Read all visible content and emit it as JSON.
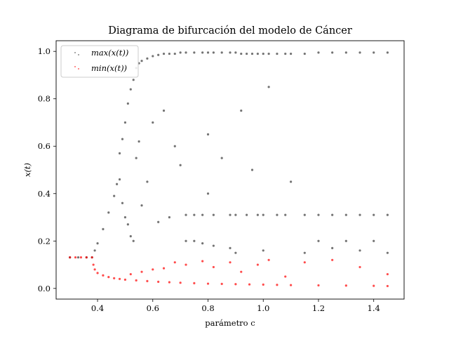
{
  "chart_data": {
    "type": "scatter",
    "title": "Diagrama de bifurcación del modelo de Cáncer",
    "xlabel": "parámetro c",
    "ylabel": "x(t)",
    "xlim": [
      0.25,
      1.51
    ],
    "ylim": [
      -0.045,
      1.045
    ],
    "x_ticks": [
      "0.4",
      "0.6",
      "0.8",
      "1.0",
      "1.2",
      "1.4"
    ],
    "y_ticks": [
      "0.0",
      "0.2",
      "0.4",
      "0.6",
      "0.8",
      "1.0"
    ],
    "grid": false,
    "legend_position": "top-left",
    "series": [
      {
        "name": "max(x(t))",
        "color": "#000000",
        "points": [
          [
            0.3,
            0.131
          ],
          [
            0.33,
            0.131
          ],
          [
            0.36,
            0.131
          ],
          [
            0.38,
            0.131
          ],
          [
            0.39,
            0.16
          ],
          [
            0.4,
            0.19
          ],
          [
            0.42,
            0.25
          ],
          [
            0.44,
            0.32
          ],
          [
            0.46,
            0.39
          ],
          [
            0.47,
            0.44
          ],
          [
            0.48,
            0.57
          ],
          [
            0.48,
            0.46
          ],
          [
            0.49,
            0.63
          ],
          [
            0.49,
            0.36
          ],
          [
            0.5,
            0.7
          ],
          [
            0.5,
            0.3
          ],
          [
            0.51,
            0.78
          ],
          [
            0.51,
            0.27
          ],
          [
            0.52,
            0.84
          ],
          [
            0.52,
            0.22
          ],
          [
            0.53,
            0.88
          ],
          [
            0.53,
            0.2
          ],
          [
            0.54,
            0.93
          ],
          [
            0.54,
            0.55
          ],
          [
            0.55,
            0.95
          ],
          [
            0.55,
            0.62
          ],
          [
            0.56,
            0.96
          ],
          [
            0.56,
            0.35
          ],
          [
            0.58,
            0.97
          ],
          [
            0.58,
            0.45
          ],
          [
            0.6,
            0.98
          ],
          [
            0.6,
            0.7
          ],
          [
            0.62,
            0.985
          ],
          [
            0.62,
            0.28
          ],
          [
            0.64,
            0.99
          ],
          [
            0.64,
            0.75
          ],
          [
            0.66,
            0.99
          ],
          [
            0.66,
            0.3
          ],
          [
            0.68,
            0.99
          ],
          [
            0.68,
            0.6
          ],
          [
            0.7,
            0.995
          ],
          [
            0.7,
            0.52
          ],
          [
            0.72,
            0.995
          ],
          [
            0.72,
            0.31
          ],
          [
            0.72,
            0.2
          ],
          [
            0.75,
            0.995
          ],
          [
            0.75,
            0.31
          ],
          [
            0.75,
            0.2
          ],
          [
            0.78,
            0.995
          ],
          [
            0.78,
            0.31
          ],
          [
            0.78,
            0.19
          ],
          [
            0.8,
            0.995
          ],
          [
            0.8,
            0.65
          ],
          [
            0.8,
            0.4
          ],
          [
            0.82,
            0.995
          ],
          [
            0.82,
            0.31
          ],
          [
            0.82,
            0.18
          ],
          [
            0.85,
            0.995
          ],
          [
            0.85,
            0.55
          ],
          [
            0.88,
            0.995
          ],
          [
            0.88,
            0.31
          ],
          [
            0.88,
            0.17
          ],
          [
            0.9,
            0.995
          ],
          [
            0.9,
            0.31
          ],
          [
            0.9,
            0.15
          ],
          [
            0.92,
            0.99
          ],
          [
            0.92,
            0.75
          ],
          [
            0.94,
            0.99
          ],
          [
            0.94,
            0.31
          ],
          [
            0.96,
            0.99
          ],
          [
            0.96,
            0.5
          ],
          [
            0.98,
            0.99
          ],
          [
            0.98,
            0.31
          ],
          [
            1.0,
            0.99
          ],
          [
            1.0,
            0.31
          ],
          [
            1.0,
            0.16
          ],
          [
            1.02,
            0.99
          ],
          [
            1.02,
            0.85
          ],
          [
            1.05,
            0.99
          ],
          [
            1.05,
            0.31
          ],
          [
            1.08,
            0.99
          ],
          [
            1.08,
            0.31
          ],
          [
            1.1,
            0.99
          ],
          [
            1.1,
            0.45
          ],
          [
            1.15,
            0.99
          ],
          [
            1.15,
            0.31
          ],
          [
            1.15,
            0.15
          ],
          [
            1.2,
            0.995
          ],
          [
            1.2,
            0.31
          ],
          [
            1.2,
            0.2
          ],
          [
            1.25,
            0.995
          ],
          [
            1.25,
            0.31
          ],
          [
            1.25,
            0.17
          ],
          [
            1.3,
            0.995
          ],
          [
            1.3,
            0.31
          ],
          [
            1.3,
            0.2
          ],
          [
            1.35,
            0.995
          ],
          [
            1.35,
            0.31
          ],
          [
            1.35,
            0.16
          ],
          [
            1.4,
            0.995
          ],
          [
            1.4,
            0.31
          ],
          [
            1.4,
            0.2
          ],
          [
            1.45,
            0.995
          ],
          [
            1.45,
            0.31
          ],
          [
            1.45,
            0.15
          ]
        ]
      },
      {
        "name": "min(x(t))",
        "color": "#ff0000",
        "points": [
          [
            0.3,
            0.131
          ],
          [
            0.32,
            0.131
          ],
          [
            0.34,
            0.131
          ],
          [
            0.36,
            0.131
          ],
          [
            0.38,
            0.131
          ],
          [
            0.385,
            0.1
          ],
          [
            0.39,
            0.08
          ],
          [
            0.4,
            0.065
          ],
          [
            0.42,
            0.055
          ],
          [
            0.44,
            0.048
          ],
          [
            0.46,
            0.043
          ],
          [
            0.48,
            0.04
          ],
          [
            0.5,
            0.037
          ],
          [
            0.52,
            0.06
          ],
          [
            0.54,
            0.034
          ],
          [
            0.56,
            0.07
          ],
          [
            0.58,
            0.031
          ],
          [
            0.6,
            0.08
          ],
          [
            0.62,
            0.028
          ],
          [
            0.64,
            0.085
          ],
          [
            0.66,
            0.026
          ],
          [
            0.68,
            0.11
          ],
          [
            0.7,
            0.024
          ],
          [
            0.72,
            0.1
          ],
          [
            0.75,
            0.022
          ],
          [
            0.78,
            0.115
          ],
          [
            0.8,
            0.02
          ],
          [
            0.82,
            0.09
          ],
          [
            0.85,
            0.019
          ],
          [
            0.88,
            0.11
          ],
          [
            0.9,
            0.018
          ],
          [
            0.92,
            0.07
          ],
          [
            0.95,
            0.017
          ],
          [
            0.98,
            0.1
          ],
          [
            1.0,
            0.016
          ],
          [
            1.02,
            0.12
          ],
          [
            1.05,
            0.015
          ],
          [
            1.08,
            0.05
          ],
          [
            1.1,
            0.014
          ],
          [
            1.15,
            0.11
          ],
          [
            1.2,
            0.013
          ],
          [
            1.25,
            0.12
          ],
          [
            1.3,
            0.012
          ],
          [
            1.35,
            0.09
          ],
          [
            1.4,
            0.011
          ],
          [
            1.45,
            0.06
          ],
          [
            1.45,
            0.01
          ]
        ]
      }
    ]
  }
}
